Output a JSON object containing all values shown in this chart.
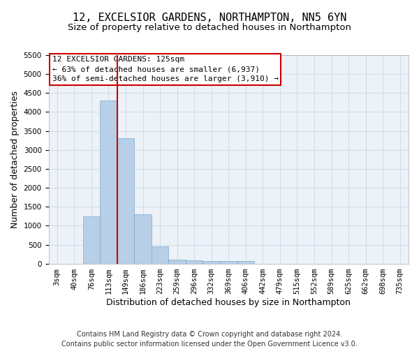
{
  "title_line1": "12, EXCELSIOR GARDENS, NORTHAMPTON, NN5 6YN",
  "title_line2": "Size of property relative to detached houses in Northampton",
  "xlabel": "Distribution of detached houses by size in Northampton",
  "ylabel": "Number of detached properties",
  "footer_line1": "Contains HM Land Registry data © Crown copyright and database right 2024.",
  "footer_line2": "Contains public sector information licensed under the Open Government Licence v3.0.",
  "categories": [
    "3sqm",
    "40sqm",
    "76sqm",
    "113sqm",
    "149sqm",
    "186sqm",
    "223sqm",
    "259sqm",
    "296sqm",
    "332sqm",
    "369sqm",
    "406sqm",
    "442sqm",
    "479sqm",
    "515sqm",
    "552sqm",
    "589sqm",
    "625sqm",
    "662sqm",
    "698sqm",
    "735sqm"
  ],
  "values": [
    0,
    0,
    1250,
    4300,
    3300,
    1300,
    450,
    100,
    80,
    70,
    60,
    60,
    0,
    0,
    0,
    0,
    0,
    0,
    0,
    0,
    0
  ],
  "bar_color": "#b8cfe8",
  "bar_edge_color": "#7aaace",
  "bar_edge_width": 0.5,
  "grid_color": "#c8d8e8",
  "background_color": "#edf2f8",
  "ylim": [
    0,
    5500
  ],
  "yticks": [
    0,
    500,
    1000,
    1500,
    2000,
    2500,
    3000,
    3500,
    4000,
    4500,
    5000,
    5500
  ],
  "vline_bar_index": 3,
  "vline_color": "#cc0000",
  "annotation_text_line1": "12 EXCELSIOR GARDENS: 125sqm",
  "annotation_text_line2": "← 63% of detached houses are smaller (6,937)",
  "annotation_text_line3": "36% of semi-detached houses are larger (3,910) →",
  "annotation_box_facecolor": "#ffffff",
  "annotation_box_edgecolor": "#cc0000",
  "title_fontsize": 11,
  "subtitle_fontsize": 9.5,
  "ylabel_fontsize": 9,
  "xlabel_fontsize": 9,
  "tick_fontsize": 7.5,
  "annotation_fontsize": 8,
  "footer_fontsize": 7
}
